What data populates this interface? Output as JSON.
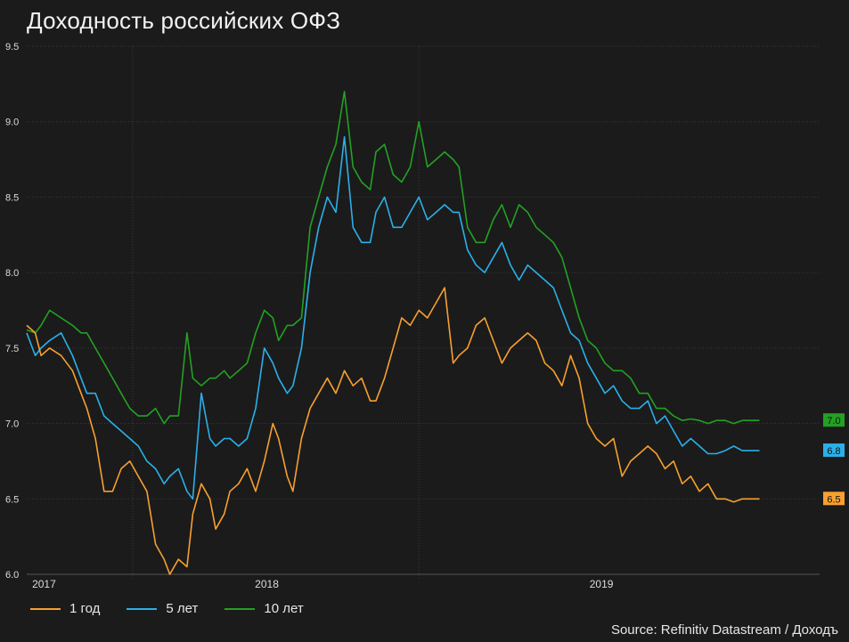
{
  "title": "Доходность российских ОФЗ",
  "source": "Source: Refinitiv Datastream / Доходъ",
  "chart_data": {
    "type": "line",
    "title": "Доходность российских ОФЗ",
    "x_range": [
      2017.0,
      2019.77
    ],
    "ylim": [
      6.0,
      9.5
    ],
    "y_ticks": [
      "6.0",
      "6.5",
      "7.0",
      "7.5",
      "8.0",
      "8.5",
      "9.0",
      "9.5"
    ],
    "x_ticks": [
      "2017",
      "2018",
      "2019"
    ],
    "grid": true,
    "legend_position": "bottom-left",
    "series": [
      {
        "name": "1 год",
        "color": "#f7a030",
        "end_label": "6.5",
        "x": [
          2017.0,
          2017.03,
          2017.05,
          2017.08,
          2017.12,
          2017.16,
          2017.19,
          2017.21,
          2017.24,
          2017.27,
          2017.3,
          2017.33,
          2017.36,
          2017.39,
          2017.42,
          2017.45,
          2017.48,
          2017.5,
          2017.53,
          2017.56,
          2017.58,
          2017.61,
          2017.64,
          2017.66,
          2017.69,
          2017.71,
          2017.74,
          2017.77,
          2017.8,
          2017.83,
          2017.86,
          2017.88,
          2017.91,
          2017.93,
          2017.96,
          2017.99,
          2018.02,
          2018.05,
          2018.08,
          2018.11,
          2018.14,
          2018.17,
          2018.2,
          2018.22,
          2018.25,
          2018.28,
          2018.31,
          2018.34,
          2018.37,
          2018.4,
          2018.43,
          2018.46,
          2018.49,
          2018.51,
          2018.54,
          2018.57,
          2018.6,
          2018.63,
          2018.66,
          2018.69,
          2018.72,
          2018.75,
          2018.78,
          2018.81,
          2018.84,
          2018.87,
          2018.9,
          2018.93,
          2018.96,
          2018.99,
          2019.02,
          2019.05,
          2019.08,
          2019.11,
          2019.14,
          2019.17,
          2019.2,
          2019.23,
          2019.26,
          2019.29,
          2019.32,
          2019.35,
          2019.38,
          2019.41,
          2019.44,
          2019.47,
          2019.5,
          2019.53,
          2019.56
        ],
        "y": [
          7.65,
          7.6,
          7.45,
          7.5,
          7.45,
          7.35,
          7.2,
          7.1,
          6.9,
          6.55,
          6.55,
          6.7,
          6.75,
          6.65,
          6.55,
          6.2,
          6.1,
          6.0,
          6.1,
          6.05,
          6.4,
          6.6,
          6.5,
          6.3,
          6.4,
          6.55,
          6.6,
          6.7,
          6.55,
          6.75,
          7.0,
          6.9,
          6.65,
          6.55,
          6.9,
          7.1,
          7.2,
          7.3,
          7.2,
          7.35,
          7.25,
          7.3,
          7.15,
          7.15,
          7.3,
          7.5,
          7.7,
          7.65,
          7.75,
          7.7,
          7.8,
          7.9,
          7.4,
          7.45,
          7.5,
          7.65,
          7.7,
          7.55,
          7.4,
          7.5,
          7.55,
          7.6,
          7.55,
          7.4,
          7.35,
          7.25,
          7.45,
          7.3,
          7.0,
          6.9,
          6.85,
          6.9,
          6.65,
          6.75,
          6.8,
          6.85,
          6.8,
          6.7,
          6.75,
          6.6,
          6.65,
          6.55,
          6.6,
          6.5,
          6.5,
          6.48,
          6.5,
          6.5,
          6.5
        ]
      },
      {
        "name": "5 лет",
        "color": "#2ab0e8",
        "end_label": "6.8",
        "x": [
          2017.0,
          2017.03,
          2017.05,
          2017.08,
          2017.12,
          2017.16,
          2017.19,
          2017.21,
          2017.24,
          2017.27,
          2017.3,
          2017.33,
          2017.36,
          2017.39,
          2017.42,
          2017.45,
          2017.48,
          2017.5,
          2017.53,
          2017.56,
          2017.58,
          2017.61,
          2017.64,
          2017.66,
          2017.69,
          2017.71,
          2017.74,
          2017.77,
          2017.8,
          2017.83,
          2017.86,
          2017.88,
          2017.91,
          2017.93,
          2017.96,
          2017.99,
          2018.02,
          2018.05,
          2018.08,
          2018.11,
          2018.14,
          2018.17,
          2018.2,
          2018.22,
          2018.25,
          2018.28,
          2018.31,
          2018.34,
          2018.37,
          2018.4,
          2018.43,
          2018.46,
          2018.49,
          2018.51,
          2018.54,
          2018.57,
          2018.6,
          2018.63,
          2018.66,
          2018.69,
          2018.72,
          2018.75,
          2018.78,
          2018.81,
          2018.84,
          2018.87,
          2018.9,
          2018.93,
          2018.96,
          2018.99,
          2019.02,
          2019.05,
          2019.08,
          2019.11,
          2019.14,
          2019.17,
          2019.2,
          2019.23,
          2019.26,
          2019.29,
          2019.32,
          2019.35,
          2019.38,
          2019.41,
          2019.44,
          2019.47,
          2019.5,
          2019.53,
          2019.56
        ],
        "y": [
          7.6,
          7.45,
          7.5,
          7.55,
          7.6,
          7.45,
          7.3,
          7.2,
          7.2,
          7.05,
          7.0,
          6.95,
          6.9,
          6.85,
          6.75,
          6.7,
          6.6,
          6.65,
          6.7,
          6.55,
          6.5,
          7.2,
          6.9,
          6.85,
          6.9,
          6.9,
          6.85,
          6.9,
          7.1,
          7.5,
          7.4,
          7.3,
          7.2,
          7.25,
          7.5,
          8.0,
          8.3,
          8.5,
          8.4,
          8.9,
          8.3,
          8.2,
          8.2,
          8.4,
          8.5,
          8.3,
          8.3,
          8.4,
          8.5,
          8.35,
          8.4,
          8.45,
          8.4,
          8.4,
          8.15,
          8.05,
          8.0,
          8.1,
          8.2,
          8.05,
          7.95,
          8.05,
          8.0,
          7.95,
          7.9,
          7.75,
          7.6,
          7.55,
          7.4,
          7.3,
          7.2,
          7.25,
          7.15,
          7.1,
          7.1,
          7.15,
          7.0,
          7.05,
          6.95,
          6.85,
          6.9,
          6.85,
          6.8,
          6.8,
          6.82,
          6.85,
          6.82,
          6.82,
          6.82
        ]
      },
      {
        "name": "10 лет",
        "color": "#23a123",
        "end_label": "7.0",
        "x": [
          2017.0,
          2017.03,
          2017.05,
          2017.08,
          2017.12,
          2017.16,
          2017.19,
          2017.21,
          2017.24,
          2017.27,
          2017.3,
          2017.33,
          2017.36,
          2017.39,
          2017.42,
          2017.45,
          2017.48,
          2017.5,
          2017.53,
          2017.56,
          2017.58,
          2017.61,
          2017.64,
          2017.66,
          2017.69,
          2017.71,
          2017.74,
          2017.77,
          2017.8,
          2017.83,
          2017.86,
          2017.88,
          2017.91,
          2017.93,
          2017.96,
          2017.99,
          2018.02,
          2018.05,
          2018.08,
          2018.11,
          2018.14,
          2018.17,
          2018.2,
          2018.22,
          2018.25,
          2018.28,
          2018.31,
          2018.34,
          2018.37,
          2018.4,
          2018.43,
          2018.46,
          2018.49,
          2018.51,
          2018.54,
          2018.57,
          2018.6,
          2018.63,
          2018.66,
          2018.69,
          2018.72,
          2018.75,
          2018.78,
          2018.81,
          2018.84,
          2018.87,
          2018.9,
          2018.93,
          2018.96,
          2018.99,
          2019.02,
          2019.05,
          2019.08,
          2019.11,
          2019.14,
          2019.17,
          2019.2,
          2019.23,
          2019.26,
          2019.29,
          2019.32,
          2019.35,
          2019.38,
          2019.41,
          2019.44,
          2019.47,
          2019.5,
          2019.53,
          2019.56
        ],
        "y": [
          7.62,
          7.6,
          7.65,
          7.75,
          7.7,
          7.65,
          7.6,
          7.6,
          7.5,
          7.4,
          7.3,
          7.2,
          7.1,
          7.05,
          7.05,
          7.1,
          7.0,
          7.05,
          7.05,
          7.6,
          7.3,
          7.25,
          7.3,
          7.3,
          7.35,
          7.3,
          7.35,
          7.4,
          7.6,
          7.75,
          7.7,
          7.55,
          7.65,
          7.65,
          7.7,
          8.3,
          8.5,
          8.7,
          8.85,
          9.2,
          8.7,
          8.6,
          8.55,
          8.8,
          8.85,
          8.65,
          8.6,
          8.7,
          9.0,
          8.7,
          8.75,
          8.8,
          8.75,
          8.7,
          8.3,
          8.2,
          8.2,
          8.35,
          8.45,
          8.3,
          8.45,
          8.4,
          8.3,
          8.25,
          8.2,
          8.1,
          7.9,
          7.7,
          7.55,
          7.5,
          7.4,
          7.35,
          7.35,
          7.3,
          7.2,
          7.2,
          7.1,
          7.1,
          7.05,
          7.02,
          7.03,
          7.02,
          7.0,
          7.02,
          7.02,
          7.0,
          7.02,
          7.02,
          7.02
        ]
      }
    ]
  },
  "legend": [
    {
      "label": "1 год",
      "color": "#f7a030"
    },
    {
      "label": "5 лет",
      "color": "#2ab0e8"
    },
    {
      "label": "10 лет",
      "color": "#23a123"
    }
  ]
}
